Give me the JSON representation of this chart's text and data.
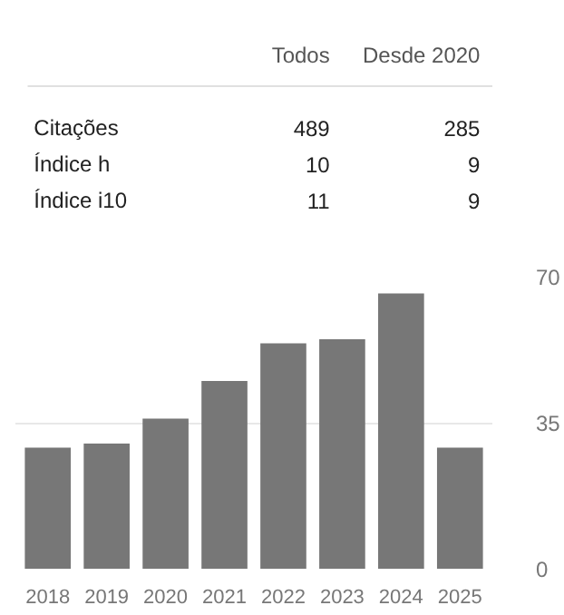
{
  "chart_data": [
    {
      "type": "other",
      "categories": [
        "Citações",
        "Índice h",
        "Índice i10"
      ],
      "series": [
        {
          "name": "Todos",
          "values": [
            489,
            10,
            11
          ]
        },
        {
          "name": "Desde 2020",
          "values": [
            285,
            9,
            9
          ]
        }
      ],
      "data_labels": true
    },
    {
      "type": "bar",
      "categories": [
        "2018",
        "2019",
        "2020",
        "2021",
        "2022",
        "2023",
        "2024",
        "2025"
      ],
      "values": [
        29,
        30,
        36,
        45,
        54,
        55,
        66,
        29
      ],
      "color": "#777777",
      "ylim": [
        0,
        70
      ],
      "yticks": [
        0,
        35,
        70
      ],
      "grid": "y"
    }
  ]
}
